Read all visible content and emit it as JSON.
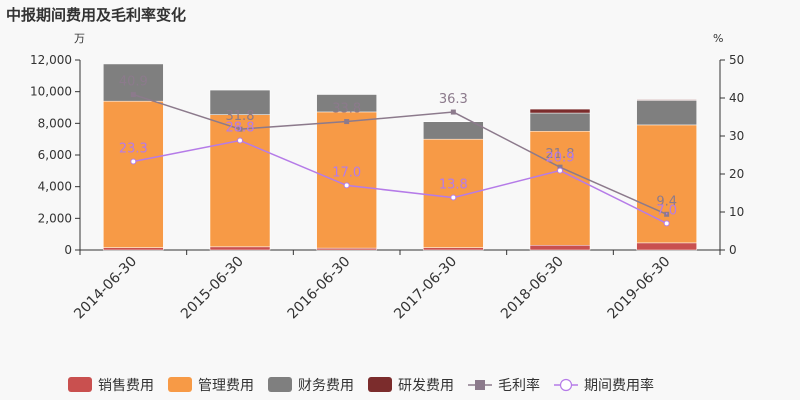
{
  "chart_data": {
    "type": "bar",
    "title": "中报期间费用及毛利率变化",
    "left_unit": "万",
    "right_unit": "%",
    "categories": [
      "2014-06-30",
      "2015-06-30",
      "2016-06-30",
      "2017-06-30",
      "2018-06-30",
      "2019-06-30"
    ],
    "bar_series": [
      {
        "name": "销售费用",
        "color": "#c9504f",
        "values": [
          150,
          200,
          120,
          150,
          300,
          450
        ]
      },
      {
        "name": "管理费用",
        "color": "#f79a46",
        "values": [
          9250,
          8350,
          8600,
          6850,
          7200,
          7450
        ]
      },
      {
        "name": "财务费用",
        "color": "#7f7f7f",
        "values": [
          2350,
          1550,
          1100,
          1100,
          1150,
          1550
        ]
      },
      {
        "name": "研发费用",
        "color": "#7b2c2c",
        "values": [
          0,
          0,
          0,
          0,
          250,
          50
        ]
      }
    ],
    "line_series": [
      {
        "name": "毛利率",
        "color": "#8c7a8c",
        "marker": "square",
        "values": [
          40.9,
          31.8,
          33.8,
          36.3,
          21.8,
          9.4
        ],
        "labels": [
          "40.9",
          "31.8",
          "33.8",
          "36.3",
          "21.8",
          "9.4"
        ]
      },
      {
        "name": "期间费用率",
        "color": "#b57be8",
        "marker": "circle",
        "values": [
          23.3,
          28.8,
          17.0,
          13.8,
          20.9,
          7.0
        ],
        "labels": [
          "23.3",
          "28.8",
          "17.0",
          "13.8",
          "20.9",
          "7.0"
        ]
      }
    ],
    "y_left": {
      "min": 0,
      "max": 12000,
      "ticks": [
        "0",
        "2,000",
        "4,000",
        "6,000",
        "8,000",
        "10,000",
        "12,000"
      ]
    },
    "y_right": {
      "min": 0,
      "max": 50,
      "ticks": [
        "0",
        "10",
        "20",
        "30",
        "40",
        "50"
      ]
    },
    "legend_position": "bottom",
    "grid": false
  }
}
